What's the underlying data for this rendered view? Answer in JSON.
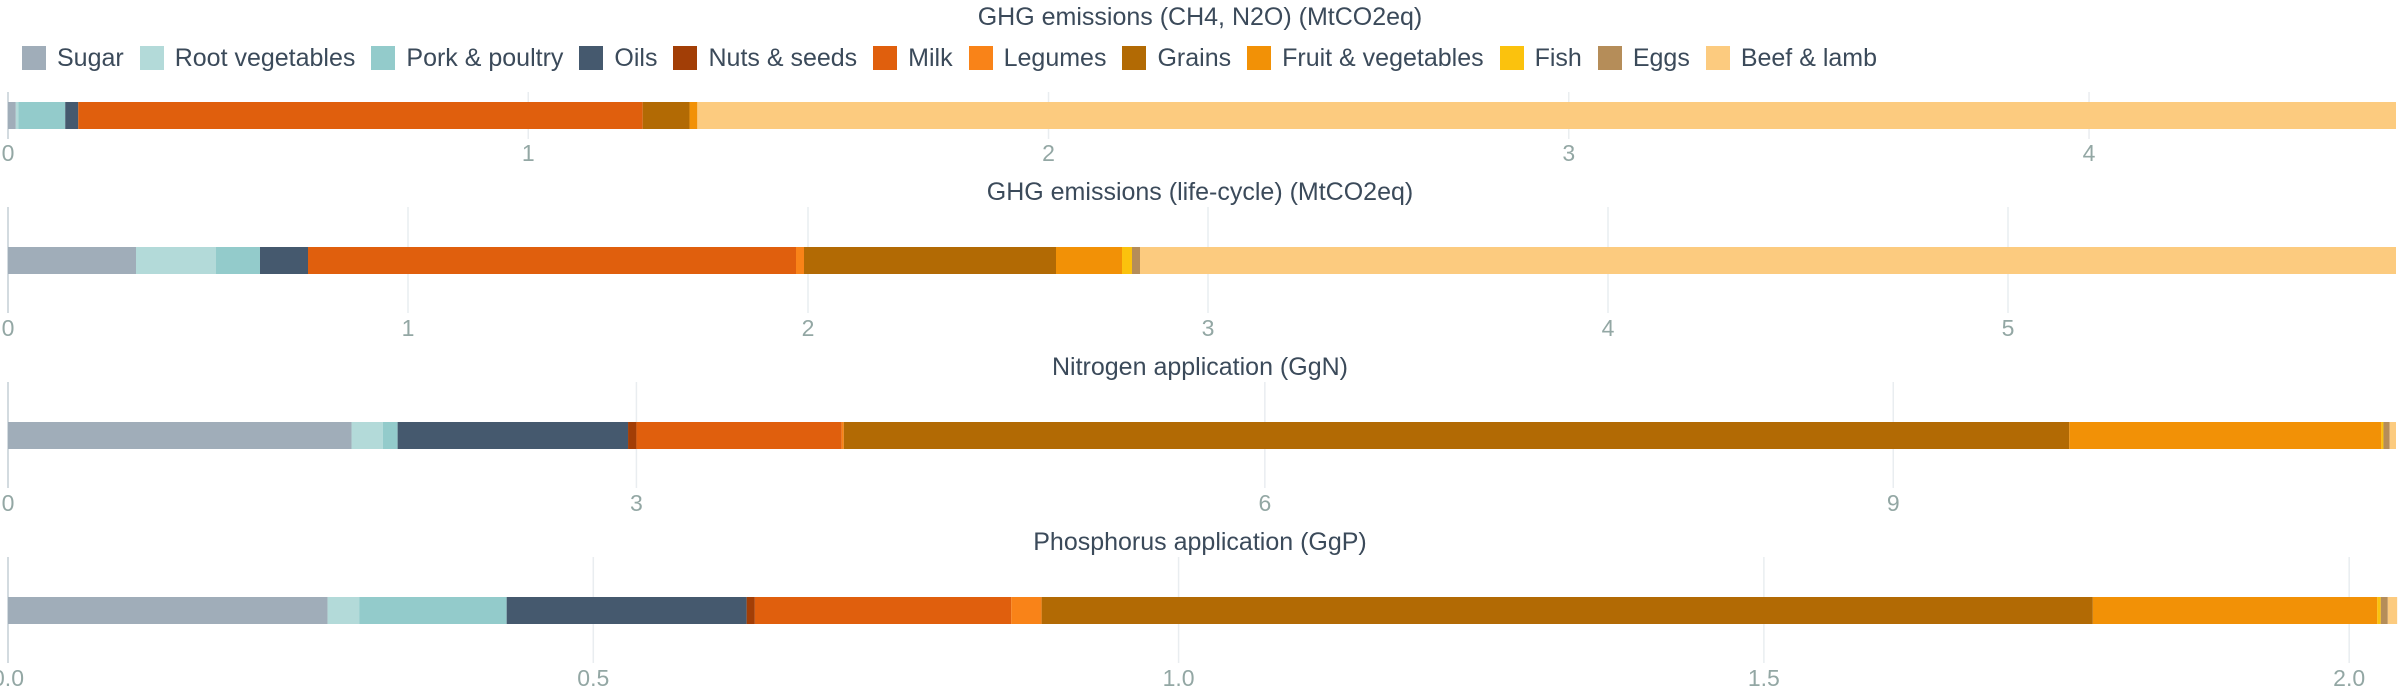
{
  "colors": {
    "Sugar": "#a0adb9",
    "Root vegetables": "#b3dad9",
    "Pork & poultry": "#93cbcb",
    "Oils": "#45596e",
    "Nuts & seeds": "#a23e06",
    "Milk": "#e05f0d",
    "Legumes": "#f98318",
    "Grains": "#b26a04",
    "Fruit & vegetables": "#f29106",
    "Fish": "#fbc20d",
    "Eggs": "#b58d59",
    "Beef & lamb": "#fccb7f",
    "grid": "#e9edf0",
    "tick_text": "#93a7a4",
    "title_text": "#3b4a5a"
  },
  "chart_data": [
    {
      "type": "bar",
      "orientation": "horizontal",
      "stacked": true,
      "title": "GHG emissions (CH4, N2O) (MtCO2eq)",
      "xlim": [
        0,
        4.59
      ],
      "ticks": [
        "0",
        "1",
        "2",
        "3",
        "4"
      ],
      "tick_values": [
        0,
        1,
        2,
        3,
        4
      ],
      "series": [
        {
          "name": "Sugar",
          "value": 0.015
        },
        {
          "name": "Root vegetables",
          "value": 0.005
        },
        {
          "name": "Pork & poultry",
          "value": 0.09
        },
        {
          "name": "Oils",
          "value": 0.025
        },
        {
          "name": "Nuts & seeds",
          "value": 0.0
        },
        {
          "name": "Milk",
          "value": 1.085
        },
        {
          "name": "Legumes",
          "value": 0.0
        },
        {
          "name": "Grains",
          "value": 0.09
        },
        {
          "name": "Fruit & vegetables",
          "value": 0.015
        },
        {
          "name": "Fish",
          "value": 0.0
        },
        {
          "name": "Eggs",
          "value": 0.0
        },
        {
          "name": "Beef & lamb",
          "value": 3.265
        }
      ]
    },
    {
      "type": "bar",
      "orientation": "horizontal",
      "stacked": true,
      "title": "GHG emissions (life-cycle) (MtCO2eq)",
      "xlim": [
        0,
        5.97
      ],
      "ticks": [
        "0",
        "1",
        "2",
        "3",
        "4",
        "5"
      ],
      "tick_values": [
        0,
        1,
        2,
        3,
        4,
        5
      ],
      "series": [
        {
          "name": "Sugar",
          "value": 0.32
        },
        {
          "name": "Root vegetables",
          "value": 0.2
        },
        {
          "name": "Pork & poultry",
          "value": 0.11
        },
        {
          "name": "Oils",
          "value": 0.12
        },
        {
          "name": "Nuts & seeds",
          "value": 0.0
        },
        {
          "name": "Milk",
          "value": 1.22
        },
        {
          "name": "Legumes",
          "value": 0.02
        },
        {
          "name": "Grains",
          "value": 0.63
        },
        {
          "name": "Fruit & vegetables",
          "value": 0.165
        },
        {
          "name": "Fish",
          "value": 0.025
        },
        {
          "name": "Eggs",
          "value": 0.02
        },
        {
          "name": "Beef & lamb",
          "value": 3.14
        }
      ]
    },
    {
      "type": "bar",
      "orientation": "horizontal",
      "stacked": true,
      "title": "Nitrogen application (GgN)",
      "xlim": [
        0,
        11.4
      ],
      "ticks": [
        "0",
        "3",
        "6",
        "9"
      ],
      "tick_values": [
        0,
        3,
        6,
        9
      ],
      "series": [
        {
          "name": "Sugar",
          "value": 1.64
        },
        {
          "name": "Root vegetables",
          "value": 0.15
        },
        {
          "name": "Pork & poultry",
          "value": 0.07
        },
        {
          "name": "Oils",
          "value": 1.1
        },
        {
          "name": "Nuts & seeds",
          "value": 0.04
        },
        {
          "name": "Milk",
          "value": 0.98
        },
        {
          "name": "Legumes",
          "value": 0.01
        },
        {
          "name": "Grains",
          "value": 5.85
        },
        {
          "name": "Fruit & vegetables",
          "value": 1.49
        },
        {
          "name": "Fish",
          "value": 0.01
        },
        {
          "name": "Eggs",
          "value": 0.03
        },
        {
          "name": "Beef & lamb",
          "value": 0.03
        }
      ]
    },
    {
      "type": "bar",
      "orientation": "horizontal",
      "stacked": true,
      "title": "Phosphorus application (GgP)",
      "xlim": [
        0,
        2.04
      ],
      "ticks": [
        "0.0",
        "0.5",
        "1.0",
        "1.5",
        "2.0"
      ],
      "tick_values": [
        0,
        0.5,
        1.0,
        1.5,
        2.0
      ],
      "series": [
        {
          "name": "Sugar",
          "value": 0.273
        },
        {
          "name": "Root vegetables",
          "value": 0.027
        },
        {
          "name": "Pork & poultry",
          "value": 0.126
        },
        {
          "name": "Oils",
          "value": 0.205
        },
        {
          "name": "Nuts & seeds",
          "value": 0.007
        },
        {
          "name": "Milk",
          "value": 0.219
        },
        {
          "name": "Legumes",
          "value": 0.026
        },
        {
          "name": "Grains",
          "value": 0.898
        },
        {
          "name": "Fruit & vegetables",
          "value": 0.243
        },
        {
          "name": "Fish",
          "value": 0.003
        },
        {
          "name": "Eggs",
          "value": 0.006
        },
        {
          "name": "Beef & lamb",
          "value": 0.008
        }
      ]
    }
  ],
  "legend": [
    "Sugar",
    "Root vegetables",
    "Pork & poultry",
    "Oils",
    "Nuts & seeds",
    "Milk",
    "Legumes",
    "Grains",
    "Fruit & vegetables",
    "Fish",
    "Eggs",
    "Beef & lamb"
  ]
}
